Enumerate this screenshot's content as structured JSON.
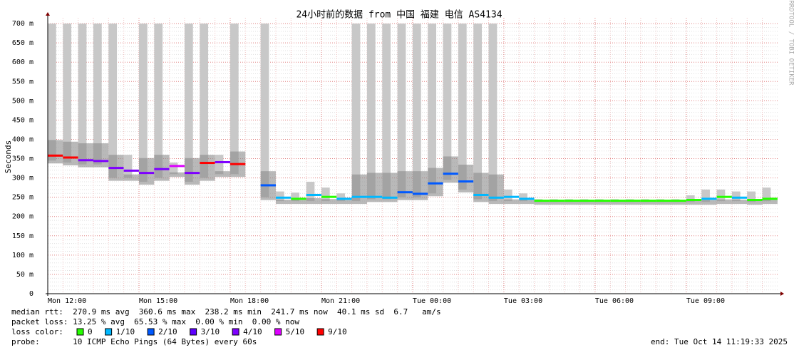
{
  "chart_data": {
    "type": "smoke",
    "title": "24小时前的数据 from 中国 福建 电信 AS4134",
    "y_label": "Seconds",
    "watermark": "RRDTOOL / TOBI OETIKER",
    "x": [
      0,
      0.5,
      1,
      1.5,
      2,
      2.5,
      3,
      3.5,
      4,
      4.5,
      5,
      5.5,
      6,
      6.5,
      7,
      7.5,
      8,
      8.5,
      9,
      9.5,
      10,
      10.5,
      11,
      11.5,
      12,
      12.5,
      13,
      13.5,
      14,
      14.5,
      15,
      15.5,
      16,
      16.5,
      17,
      17.5,
      18,
      18.5,
      19,
      19.5,
      20,
      20.5,
      21,
      21.5,
      22,
      22.5,
      23,
      23.5
    ],
    "values": [
      0.357,
      0.352,
      0.345,
      0.343,
      0.325,
      0.318,
      0.312,
      0.322,
      0.33,
      0.312,
      0.338,
      0.34,
      0.335,
      null,
      0.28,
      0.248,
      0.245,
      0.255,
      0.25,
      0.245,
      0.25,
      0.25,
      0.248,
      0.262,
      0.258,
      0.285,
      0.31,
      0.29,
      0.255,
      0.248,
      0.25,
      0.245,
      0.24,
      0.24,
      0.24,
      0.24,
      0.24,
      0.24,
      0.24,
      0.24,
      0.24,
      0.24,
      0.242,
      0.245,
      0.25,
      0.248,
      0.242,
      0.245
    ],
    "smoke_low": [
      0.345,
      0.34,
      0.335,
      0.335,
      0.3,
      0.3,
      0.29,
      0.3,
      0.31,
      0.29,
      0.3,
      0.31,
      0.31,
      null,
      0.25,
      0.24,
      0.24,
      0.24,
      0.24,
      0.24,
      0.24,
      0.245,
      0.245,
      0.25,
      0.25,
      0.26,
      0.295,
      0.27,
      0.245,
      0.24,
      0.24,
      0.24,
      0.238,
      0.238,
      0.238,
      0.238,
      0.238,
      0.238,
      0.238,
      0.238,
      0.238,
      0.238,
      0.238,
      0.238,
      0.24,
      0.24,
      0.238,
      0.24
    ],
    "smoke_high": [
      0.7,
      0.7,
      0.7,
      0.7,
      0.7,
      0.36,
      0.7,
      0.7,
      0.34,
      0.7,
      0.7,
      0.36,
      0.7,
      null,
      0.7,
      0.265,
      0.262,
      0.29,
      0.275,
      0.26,
      0.7,
      0.7,
      0.7,
      0.7,
      0.7,
      0.7,
      0.7,
      0.7,
      0.7,
      0.7,
      0.27,
      0.26,
      0.245,
      0.245,
      0.245,
      0.245,
      0.245,
      0.245,
      0.245,
      0.245,
      0.245,
      0.245,
      0.255,
      0.27,
      0.27,
      0.265,
      0.265,
      0.275
    ],
    "colors": [
      "#ff0000",
      "#ff0000",
      "#7e00ff",
      "#7e00ff",
      "#7e00ff",
      "#7e00ff",
      "#7e00ff",
      "#7e00ff",
      "#dd00ff",
      "#7e00ff",
      "#ff0000",
      "#7e00ff",
      "#ff0000",
      null,
      "#0059ff",
      "#00b8ff",
      "#26ff00",
      "#00b8ff",
      "#26ff00",
      "#00b8ff",
      "#00b8ff",
      "#00b8ff",
      "#00b8ff",
      "#0059ff",
      "#0059ff",
      "#0059ff",
      "#0059ff",
      "#0059ff",
      "#00b8ff",
      "#00b8ff",
      "#00b8ff",
      "#00b8ff",
      "#26ff00",
      "#26ff00",
      "#26ff00",
      "#26ff00",
      "#26ff00",
      "#26ff00",
      "#26ff00",
      "#26ff00",
      "#26ff00",
      "#26ff00",
      "#26ff00",
      "#00b8ff",
      "#26ff00",
      "#00b8ff",
      "#26ff00",
      "#26ff00"
    ],
    "xlim": [
      0,
      24.05
    ],
    "xticks": [
      {
        "value": 0,
        "label": "Mon 12:00"
      },
      {
        "value": 3,
        "label": "Mon 15:00"
      },
      {
        "value": 6,
        "label": "Mon 18:00"
      },
      {
        "value": 9,
        "label": "Mon 21:00"
      },
      {
        "value": 12,
        "label": "Tue 00:00"
      },
      {
        "value": 15,
        "label": "Tue 03:00"
      },
      {
        "value": 18,
        "label": "Tue 06:00"
      },
      {
        "value": 21,
        "label": "Tue 09:00"
      }
    ],
    "ylim": [
      0,
      0.715
    ],
    "yticks": [
      {
        "value": 0,
        "label": "0"
      },
      {
        "value": 0.05,
        "label": "50 m"
      },
      {
        "value": 0.1,
        "label": "100 m"
      },
      {
        "value": 0.15,
        "label": "150 m"
      },
      {
        "value": 0.2,
        "label": "200 m"
      },
      {
        "value": 0.25,
        "label": "250 m"
      },
      {
        "value": 0.3,
        "label": "300 m"
      },
      {
        "value": 0.35,
        "label": "350 m"
      },
      {
        "value": 0.4,
        "label": "400 m"
      },
      {
        "value": 0.45,
        "label": "450 m"
      },
      {
        "value": 0.5,
        "label": "500 m"
      },
      {
        "value": 0.55,
        "label": "550 m"
      },
      {
        "value": 0.6,
        "label": "600 m"
      },
      {
        "value": 0.65,
        "label": "650 m"
      },
      {
        "value": 0.7,
        "label": "700 m"
      }
    ],
    "grid": true,
    "stats": [
      "median rtt:  270.9 ms avg  360.6 ms max  238.2 ms min  241.7 ms now  40.1 ms sd  6.7   am/s",
      "packet loss: 13.25 % avg  65.53 % max  0.00 % min  0.00 % now"
    ],
    "legend_title": "loss color:",
    "legend": [
      {
        "label": "0",
        "color": "#26ff00"
      },
      {
        "label": "1/10",
        "color": "#00b8ff"
      },
      {
        "label": "2/10",
        "color": "#0059ff"
      },
      {
        "label": "3/10",
        "color": "#5e00ff"
      },
      {
        "label": "4/10",
        "color": "#7e00ff"
      },
      {
        "label": "5/10",
        "color": "#dd00ff"
      },
      {
        "label": "9/10",
        "color": "#ff0000"
      }
    ],
    "probe": "probe:       10 ICMP Echo Pings (64 Bytes) every 60s",
    "end": "end: Tue Oct 14 11:19:33 2025"
  }
}
